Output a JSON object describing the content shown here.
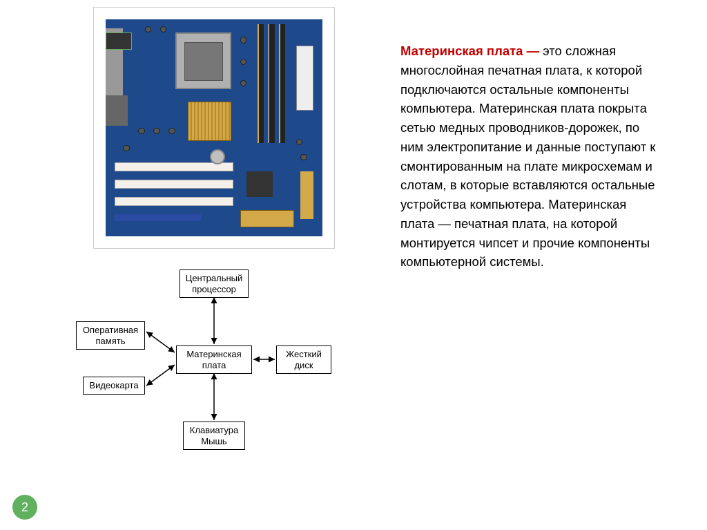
{
  "colors": {
    "title": "#c00000",
    "text": "#000000",
    "page_badge_bg": "#5fb05f",
    "page_badge_text": "#ffffff",
    "pcb": "#1e4a8c",
    "box_border": "#000000",
    "arrow": "#000000"
  },
  "fontsizes": {
    "body": 18.5,
    "diagram": 13,
    "page_num": 18
  },
  "title": "Материнская плата —",
  "body": "это сложная многослойная печатная плата, к которой подключаются остальные компоненты компьютера. Материнская плата покрыта сетью медных проводников-дорожек, по ним электропитание и данные поступают к смонтированным на плате микросхемам и слотам, в которые вставляются остальные устройства компьютера. Материнская плата — печатная плата, на которой монтируется чипсет и прочие компоненты компьютерной системы.",
  "page_number": "2",
  "diagram": {
    "center": "Материнская\nплата",
    "top": "Центральный\nпроцессор",
    "left1": "Оперативная\nпамять",
    "left2": "Видеокарта",
    "right": "Жесткий\nдиск",
    "bottom": "Клавиатура\nМышь",
    "arrow_width": 1.5,
    "arrowhead_size": 6,
    "edges": [
      {
        "from": "center",
        "to": "top",
        "bidir": true
      },
      {
        "from": "center",
        "to": "left1",
        "bidir": true
      },
      {
        "from": "center",
        "to": "left2",
        "bidir": true
      },
      {
        "from": "center",
        "to": "right",
        "bidir": true
      },
      {
        "from": "center",
        "to": "bottom",
        "bidir": true
      }
    ]
  }
}
